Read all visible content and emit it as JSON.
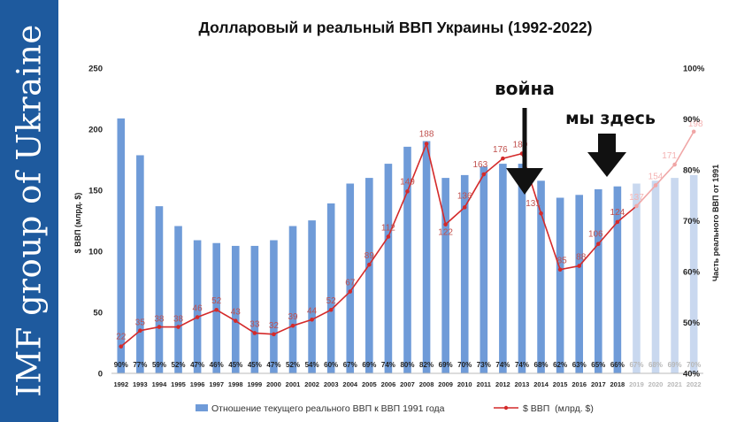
{
  "sidebar": {
    "text": "IMF group of Ukraine"
  },
  "chart_data": {
    "type": "bar+line",
    "title": "Долларовый и реальный ВВП Украины (1992-2022)",
    "ylabel_left": "$ ВВП (млрд. $)",
    "ylabel_right": "Часть реального ВВП от 1991",
    "left_ticks": [
      "0",
      "50",
      "100",
      "150",
      "200",
      "250"
    ],
    "right_ticks": [
      "40%",
      "50%",
      "60%",
      "70%",
      "80%",
      "90%",
      "100%"
    ],
    "ylim_left": [
      0,
      250
    ],
    "ylim_right": [
      40,
      100
    ],
    "categories": [
      "1992",
      "1993",
      "1994",
      "1995",
      "1996",
      "1997",
      "1998",
      "1999",
      "2000",
      "2001",
      "2002",
      "2003",
      "2004",
      "2005",
      "2006",
      "2007",
      "2008",
      "2009",
      "2010",
      "2011",
      "2012",
      "2013",
      "2014",
      "2015",
      "2016",
      "2017",
      "2018",
      "2019",
      "2020",
      "2021",
      "2022"
    ],
    "projected_from_index": 27,
    "bars": {
      "name": "Отношение текущего реального ВВП к ВВП 1991 года",
      "values": [
        90,
        77,
        59,
        52,
        47,
        46,
        45,
        45,
        47,
        52,
        54,
        60,
        67,
        69,
        74,
        80,
        82,
        69,
        70,
        73,
        74,
        74,
        68,
        62,
        63,
        65,
        66,
        67,
        68,
        69,
        70
      ],
      "labels": [
        "90%",
        "77%",
        "59%",
        "52%",
        "47%",
        "46%",
        "45%",
        "45%",
        "47%",
        "52%",
        "54%",
        "60%",
        "67%",
        "69%",
        "74%",
        "80%",
        "82%",
        "69%",
        "70%",
        "73%",
        "74%",
        "74%",
        "68%",
        "62%",
        "63%",
        "65%",
        "66%",
        "67%",
        "68%",
        "69%",
        "70%"
      ],
      "color": "#6f9bd8",
      "projected_color": "#c9d8ef"
    },
    "line": {
      "name": "$ ВВП  (млрд. $)",
      "values": [
        22,
        35,
        38,
        38,
        46,
        52,
        43,
        33,
        32,
        39,
        44,
        52,
        67,
        89,
        112,
        149,
        188,
        122,
        136,
        163,
        176,
        180,
        131,
        85,
        88,
        106,
        124,
        137,
        154,
        171,
        198
      ],
      "labels": [
        "22",
        "35",
        "38",
        "38",
        "46",
        "52",
        "43",
        "33",
        "32",
        "39",
        "44",
        "52",
        "67",
        "89",
        "112",
        "149",
        "188",
        "122",
        "136",
        "163",
        "176",
        "180",
        "131",
        "85",
        "88",
        "106",
        "124",
        "137",
        "154",
        "171",
        "198"
      ],
      "color": "#d42a2a",
      "label_color": "#c0504d",
      "projected_color": "#f0a6a6"
    },
    "annotations": [
      {
        "text": "война",
        "index": 22
      },
      {
        "text": "мы здесь",
        "index": 27
      }
    ]
  }
}
